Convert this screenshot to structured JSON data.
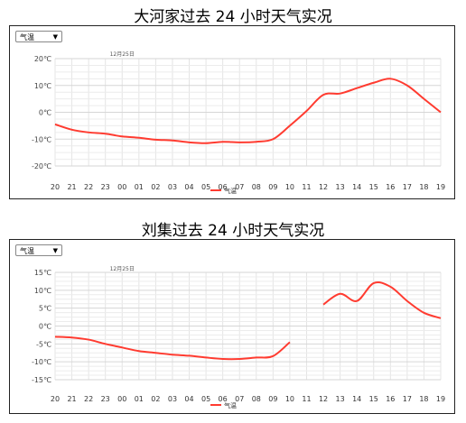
{
  "chart_data": [
    {
      "type": "line",
      "title": "大河家过去 24 小时天气实况",
      "select_value": "气温",
      "date_label": "12月25日",
      "legend": "气温",
      "series_color": "#ff3b30",
      "ylim": [
        -20,
        20
      ],
      "yticks": [
        "20℃",
        "10℃",
        "0℃",
        "-10℃",
        "-20℃"
      ],
      "categories": [
        "20",
        "21",
        "22",
        "23",
        "00",
        "01",
        "02",
        "03",
        "04",
        "05",
        "06",
        "07",
        "08",
        "09",
        "10",
        "11",
        "12",
        "13",
        "14",
        "15",
        "16",
        "17",
        "18",
        "19"
      ],
      "values": [
        -4.5,
        -6.5,
        -7.5,
        -8,
        -9,
        -9.5,
        -10.2,
        -10.5,
        -11.2,
        -11.5,
        -11,
        -11.2,
        -11,
        -10,
        -5,
        0.5,
        6.5,
        7,
        9,
        11,
        12.5,
        10,
        5,
        0
      ]
    },
    {
      "type": "line",
      "title": "刘集过去 24 小时天气实况",
      "select_value": "气温",
      "date_label": "12月25日",
      "legend": "气温",
      "series_color": "#ff3b30",
      "ylim": [
        -15,
        15
      ],
      "yticks": [
        "15℃",
        "10℃",
        "5℃",
        "0℃",
        "-5℃",
        "-10℃",
        "-15℃"
      ],
      "categories": [
        "20",
        "21",
        "22",
        "23",
        "00",
        "01",
        "02",
        "03",
        "04",
        "05",
        "06",
        "07",
        "08",
        "09",
        "10",
        "11",
        "12",
        "13",
        "14",
        "15",
        "16",
        "17",
        "18",
        "19"
      ],
      "values": [
        -3,
        -3.2,
        -3.8,
        -5,
        -6,
        -7,
        -7.5,
        -8,
        -8.3,
        -8.8,
        -9.2,
        -9.2,
        -8.8,
        -8.4,
        -4.5,
        null,
        6,
        9,
        7,
        12,
        11,
        7,
        3.7,
        2.2
      ]
    }
  ]
}
